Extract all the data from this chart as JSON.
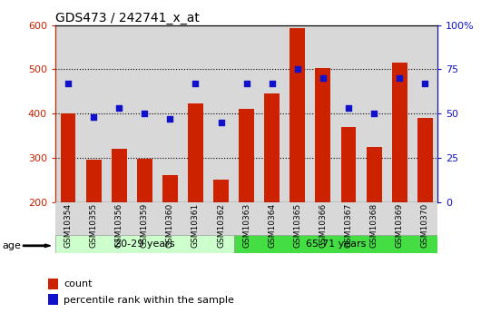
{
  "title": "GDS473 / 242741_x_at",
  "samples": [
    "GSM10354",
    "GSM10355",
    "GSM10356",
    "GSM10359",
    "GSM10360",
    "GSM10361",
    "GSM10362",
    "GSM10363",
    "GSM10364",
    "GSM10365",
    "GSM10366",
    "GSM10367",
    "GSM10368",
    "GSM10369",
    "GSM10370"
  ],
  "counts": [
    400,
    295,
    320,
    298,
    260,
    422,
    250,
    410,
    445,
    592,
    503,
    370,
    325,
    515,
    390
  ],
  "percentiles": [
    67,
    48,
    53,
    50,
    47,
    67,
    45,
    67,
    67,
    75,
    70,
    53,
    50,
    70,
    67
  ],
  "group1_label": "20-29 years",
  "group2_label": "65-71 years",
  "group1_count": 7,
  "group2_count": 8,
  "y_min": 200,
  "y_max": 600,
  "y_ticks": [
    200,
    300,
    400,
    500,
    600
  ],
  "y2_ticks": [
    0,
    25,
    50,
    75,
    100
  ],
  "bar_color": "#cc2200",
  "dot_color": "#1111cc",
  "group1_bg": "#ccffcc",
  "group2_bg": "#44dd44",
  "age_label": "age",
  "legend_count": "count",
  "legend_percentile": "percentile rank within the sample",
  "bar_bottom": 200,
  "bar_width": 0.6,
  "col_bg": "#d8d8d8"
}
